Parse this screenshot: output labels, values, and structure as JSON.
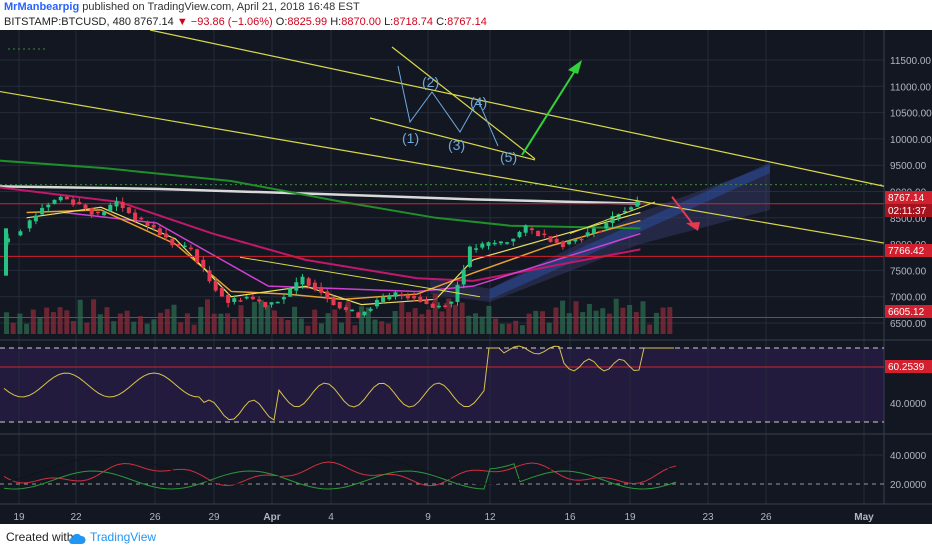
{
  "header": {
    "user": "MrManbearpig",
    "published": " published on TradingView.com, April 21, 2018 16:48 EST",
    "symbol": "BITSTAMP:BTCUSD, 480",
    "last": "8767.14",
    "change": "▼ −93.86 (−1.06%)",
    "o_label": "O:",
    "o_val": "8825.99",
    "h_label": "H:",
    "h_val": "8870.00",
    "l_label": "L:",
    "l_val": "8718.74",
    "c_label": "C:",
    "c_val": "8767.14"
  },
  "footer": {
    "created_with": "Created with",
    "brand": "TradingView"
  },
  "colors": {
    "background": "#131722",
    "grid": "#262b3a",
    "up": "#26c281",
    "down": "#e53950",
    "trendline": "#d8d84a",
    "wave": "#6fa8dc",
    "rsi": "#d8c24a",
    "rsi_band": "#2b1e4a",
    "price_tag": "#d3202f"
  },
  "price_axis": {
    "labels": [
      "11500.00",
      "11000.00",
      "10500.00",
      "10000.00",
      "9500.00",
      "9000.00",
      "8500.00",
      "8000.00",
      "7500.00",
      "7000.00",
      "6500.00"
    ],
    "tags": [
      {
        "text": "8767.14",
        "kind": "price"
      },
      {
        "text": "02:11:37",
        "kind": "countdown"
      },
      {
        "text": "7766.42",
        "kind": "level"
      },
      {
        "text": "6605.12",
        "kind": "level"
      }
    ]
  },
  "rsi_axis": {
    "labels": [
      "40.0000"
    ],
    "tag": "60.2539"
  },
  "dmi_axis": {
    "labels": [
      "40.0000",
      "20.0000"
    ]
  },
  "time_axis": {
    "labels": [
      "19",
      "22",
      "26",
      "29",
      "Apr",
      "4",
      "9",
      "12",
      "16",
      "19",
      "23",
      "26",
      "May"
    ]
  },
  "annotations": {
    "waves": [
      "(1)",
      "(2)",
      "(3)",
      "(4)",
      "(5)"
    ]
  },
  "chart_data": {
    "type": "candlestick",
    "symbol": "BITSTAMP:BTCUSD",
    "timeframe": "480",
    "last_bar": {
      "open": 8825.99,
      "high": 8870.0,
      "low": 8718.74,
      "close": 8767.14,
      "change": -93.86,
      "change_pct": -1.06
    },
    "price_range": [
      6300,
      12000
    ],
    "horizontal_levels": [
      8767.14,
      7766.42,
      6605.12
    ],
    "close_path": [
      [
        "Mar 17",
        7900
      ],
      [
        "Mar 19",
        8300
      ],
      [
        "Mar 20",
        8700
      ],
      [
        "Mar 21",
        8900
      ],
      [
        "Mar 22",
        8750
      ],
      [
        "Mar 23",
        8550
      ],
      [
        "Mar 24",
        8800
      ],
      [
        "Mar 25",
        8500
      ],
      [
        "Mar 26",
        8300
      ],
      [
        "Mar 27",
        8000
      ],
      [
        "Mar 28",
        7900
      ],
      [
        "Mar 29",
        7300
      ],
      [
        "Mar 30",
        6900
      ],
      [
        "Mar 31",
        7000
      ],
      [
        "Apr 1",
        6850
      ],
      [
        "Apr 2",
        7000
      ],
      [
        "Apr 3",
        7350
      ],
      [
        "Apr 4",
        7100
      ],
      [
        "Apr 5",
        6800
      ],
      [
        "Apr 6",
        6650
      ],
      [
        "Apr 7",
        6900
      ],
      [
        "Apr 8",
        7050
      ],
      [
        "Apr 9",
        7000
      ],
      [
        "Apr 10",
        6800
      ],
      [
        "Apr 11",
        6900
      ],
      [
        "Apr 12",
        7900
      ],
      [
        "Apr 13",
        8000
      ],
      [
        "Apr 14",
        8050
      ],
      [
        "Apr 15",
        8300
      ],
      [
        "Apr 16",
        8150
      ],
      [
        "Apr 17",
        8000
      ],
      [
        "Apr 18",
        8150
      ],
      [
        "Apr 19",
        8300
      ],
      [
        "Apr 20",
        8600
      ],
      [
        "Apr 21",
        8767.14
      ]
    ],
    "rsi": {
      "latest": 60.2539,
      "levels": [
        70,
        30
      ]
    }
  }
}
